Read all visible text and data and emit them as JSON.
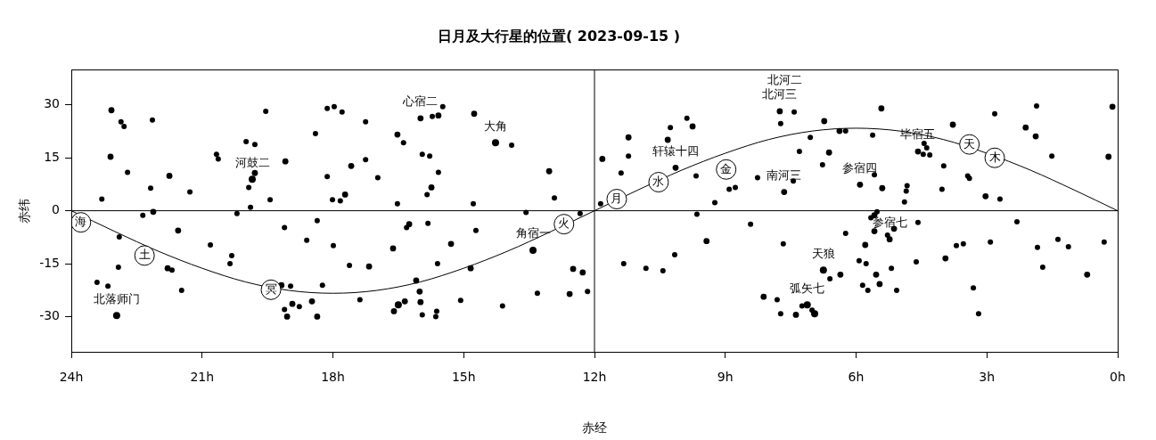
{
  "chart_data": {
    "type": "scatter",
    "title": "日月及大行星的位置( 2023-09-15 )",
    "xlabel": "赤经",
    "ylabel": "赤纬",
    "xlim": [
      24,
      0
    ],
    "ylim": [
      -40,
      40
    ],
    "xticks": [
      {
        "value": 24,
        "label": "24h"
      },
      {
        "value": 21,
        "label": "21h"
      },
      {
        "value": 18,
        "label": "18h"
      },
      {
        "value": 15,
        "label": "15h"
      },
      {
        "value": 12,
        "label": "12h"
      },
      {
        "value": 9,
        "label": "9h"
      },
      {
        "value": 6,
        "label": "6h"
      },
      {
        "value": 3,
        "label": "3h"
      },
      {
        "value": 0,
        "label": "0h"
      }
    ],
    "yticks": [
      -30,
      -15,
      0,
      15,
      30
    ],
    "ref_lines": [
      {
        "axis": "y",
        "value": 0,
        "color": "#000000"
      },
      {
        "axis": "x",
        "value": 12,
        "color": "#000000"
      }
    ],
    "series": [
      {
        "color": "#000000",
        "marker": "circle",
        "x": [
          19.85,
          14.27,
          22.96,
          16.5,
          13.41,
          6.75,
          7.12,
          6.95
        ],
        "values": [
          8.9,
          19.3,
          -29.7,
          -26.7,
          -11.2,
          -16.8,
          -26.7,
          -29.2
        ]
      },
      {
        "color": "#000000",
        "marker": "circle",
        "x": [
          23.08,
          23.1,
          21.75,
          22.12,
          19.79,
          19.09,
          16.52,
          15.99,
          17.58,
          17.72,
          15.58,
          14.76,
          15.74,
          13.04,
          11.82,
          11.22,
          9.75,
          10.32,
          10.14,
          7.75,
          6.73,
          5.42,
          6.38,
          6.62,
          7.65,
          5.91,
          5.4,
          4.58,
          3.78,
          0.12,
          2.11,
          1.88,
          0.21,
          3.03,
          21.55,
          21.79,
          17.17,
          19.18,
          18.93,
          19.05,
          18.48,
          18.36,
          16.62,
          16.25,
          16.09,
          16.01,
          16.35,
          16.6,
          15.99,
          15.29,
          14.84,
          12.49,
          12.27,
          12.57,
          9.43,
          8.12,
          5.58,
          5.58,
          5.13,
          5.23,
          5.79,
          6.36,
          5.54,
          5.46,
          3.95,
          0.7,
          7.38
        ],
        "values": [
          28.5,
          15.3,
          9.9,
          -0.3,
          10.7,
          14.0,
          21.6,
          26.2,
          12.7,
          4.6,
          27.0,
          27.5,
          6.6,
          11.2,
          14.7,
          20.8,
          23.9,
          20.1,
          12.2,
          28.2,
          25.4,
          29.0,
          22.6,
          16.5,
          5.3,
          7.4,
          6.4,
          16.8,
          24.4,
          29.5,
          23.6,
          21.1,
          15.3,
          4.1,
          -5.6,
          -16.3,
          -15.8,
          -21.1,
          -26.4,
          -30.0,
          -25.7,
          -30.0,
          -10.7,
          -3.8,
          -19.8,
          -22.9,
          -25.7,
          -28.5,
          -25.9,
          -9.4,
          -16.3,
          -16.5,
          -17.5,
          -23.6,
          -8.6,
          -24.4,
          -1.3,
          -5.8,
          -5.1,
          -8.1,
          -9.7,
          -18.1,
          -18.1,
          -20.8,
          -13.5,
          -18.1,
          -29.5
        ]
      },
      {
        "color": "#000000",
        "marker": "circle",
        "x": [
          22.86,
          22.79,
          22.14,
          22.71,
          22.18,
          23.3,
          21.28,
          22.36,
          20.67,
          20.63,
          19.99,
          19.79,
          19.93,
          19.89,
          20.2,
          19.54,
          19.44,
          18.4,
          18.13,
          17.97,
          17.79,
          17.25,
          16.38,
          18.13,
          17.25,
          16.97,
          18.01,
          17.83,
          16.52,
          15.95,
          15.72,
          15.48,
          13.9,
          15.78,
          15.58,
          15.84,
          14.78,
          12.92,
          13.57,
          12.33,
          11.22,
          11.39,
          11.86,
          9.88,
          10.26,
          9.67,
          8.91,
          8.77,
          9.24,
          9.65,
          8.26,
          7.42,
          7.73,
          7.05,
          6.24,
          5.62,
          7.3,
          6.77,
          7.44,
          5.58,
          4.44,
          4.38,
          4.46,
          4.31,
          2.82,
          1.86,
          1.51,
          3.99,
          3.44,
          3.4,
          4.03,
          4.83,
          4.85,
          4.89,
          2.7,
          22.9,
          20.81,
          20.32,
          20.36,
          22.92,
          21.69,
          23.41,
          23.16,
          21.47,
          19.11,
          18.36,
          18.6,
          17.99,
          17.62,
          18.24,
          18.97,
          18.77,
          19.11,
          17.38,
          16.31,
          15.95,
          15.82,
          14.72,
          15.6,
          12.16,
          13.31,
          15.07,
          14.11,
          15.62,
          15.64,
          8.42,
          10.16,
          11.33,
          10.82,
          10.43,
          5.52,
          5.66,
          5.28,
          4.58,
          2.31,
          6.24,
          7.67,
          6.6,
          5.93,
          5.77,
          5.19,
          5.85,
          5.73,
          5.07,
          4.62,
          3.7,
          3.54,
          2.92,
          1.84,
          1.37,
          1.13,
          0.31,
          1.72,
          3.31,
          3.19,
          7.81,
          7.24,
          7.01,
          7.73
        ],
        "values": [
          25.2,
          23.9,
          25.7,
          10.9,
          6.4,
          3.3,
          5.3,
          -1.3,
          16.0,
          14.7,
          19.6,
          18.8,
          6.6,
          1.0,
          -0.8,
          28.2,
          3.1,
          21.9,
          29.0,
          29.5,
          28.0,
          25.2,
          19.3,
          9.7,
          14.5,
          9.4,
          3.1,
          2.8,
          2.0,
          16.0,
          26.7,
          29.5,
          18.6,
          15.5,
          10.9,
          4.6,
          2.0,
          3.6,
          -0.5,
          -0.8,
          15.5,
          10.7,
          2.0,
          26.2,
          23.6,
          9.9,
          6.1,
          6.6,
          2.3,
          -1.0,
          9.4,
          28.0,
          24.7,
          20.8,
          22.6,
          21.4,
          16.8,
          13.0,
          8.4,
          10.2,
          19.1,
          17.8,
          16.0,
          15.8,
          27.5,
          29.7,
          15.5,
          12.7,
          9.9,
          9.2,
          6.1,
          7.1,
          5.6,
          2.5,
          3.3,
          -7.4,
          -9.7,
          -12.7,
          -15.0,
          -16.0,
          -16.8,
          -20.3,
          -21.4,
          -22.6,
          -4.8,
          -2.8,
          -8.4,
          -9.9,
          -15.5,
          -21.1,
          -21.4,
          -27.2,
          -28.0,
          -25.2,
          -4.8,
          -29.5,
          -3.6,
          -5.6,
          -15.0,
          -22.9,
          -23.4,
          -25.4,
          -27.0,
          -28.5,
          -30.0,
          -3.8,
          -12.5,
          -15.0,
          -16.3,
          -17.0,
          -0.3,
          -2.0,
          -6.9,
          -3.3,
          -3.1,
          -6.4,
          -9.4,
          -19.3,
          -14.2,
          -15.0,
          -16.3,
          -21.1,
          -22.6,
          -22.6,
          -14.5,
          -9.9,
          -9.4,
          -8.9,
          -10.4,
          -8.1,
          -10.2,
          -8.9,
          -16.0,
          -21.9,
          -29.2,
          -25.2,
          -27.0,
          -28.2,
          -29.2
        ]
      },
      {
        "type": "line",
        "color": "#000000",
        "x": [
          0,
          1,
          2,
          3,
          4,
          5,
          6,
          7,
          8,
          9,
          10,
          11,
          12,
          13,
          14,
          15,
          16,
          17,
          18,
          19,
          20,
          21,
          22,
          23,
          24
        ],
        "values": [
          0,
          5.9,
          11.5,
          16.3,
          20.2,
          22.6,
          23.4,
          22.6,
          20.2,
          16.3,
          11.5,
          5.9,
          0,
          -5.9,
          -11.5,
          -16.3,
          -20.2,
          -22.6,
          -23.4,
          -22.6,
          -20.2,
          -16.3,
          -11.5,
          -5.9,
          0
        ]
      },
      {
        "color": "#000000",
        "marker": "circle",
        "x": [
          23.78,
          22.32,
          19.42,
          12.7,
          11.49,
          10.53,
          8.98,
          3.4,
          2.82
        ],
        "values": [
          -3.3,
          -12.7,
          -22.4,
          -3.8,
          3.3,
          8.1,
          11.7,
          18.8,
          15.0
        ],
        "value_labels": [
          "海",
          "土",
          "冥",
          "火",
          "月",
          "水",
          "金",
          "天",
          "木"
        ]
      }
    ],
    "annotations": [
      {
        "text": "心宿二",
        "x": 15.99,
        "y": 26.2
      },
      {
        "text": "大角",
        "x": 14.27,
        "y": 19.3
      },
      {
        "text": "河鼓二",
        "x": 19.85,
        "y": 8.9
      },
      {
        "text": "北河三",
        "x": 7.75,
        "y": 28.2
      },
      "北河二",
      {
        "text": "轩辕十四",
        "x": 10.14,
        "y": 12.2
      },
      {
        "text": "南河三",
        "x": 7.65,
        "y": 5.3
      },
      {
        "text": "参宿四",
        "x": 5.91,
        "y": 7.4
      },
      {
        "text": "毕宿五",
        "x": 4.58,
        "y": 16.8
      },
      {
        "text": "角宿一",
        "x": 13.41,
        "y": -11.2
      },
      {
        "text": "参宿七",
        "x": 5.23,
        "y": -8.1
      },
      {
        "text": "天狼",
        "x": 6.75,
        "y": -16.8
      },
      {
        "text": "弧矢七",
        "x": 7.12,
        "y": -26.7
      },
      {
        "text": "北落师门",
        "x": 22.96,
        "y": -29.7
      }
    ]
  }
}
